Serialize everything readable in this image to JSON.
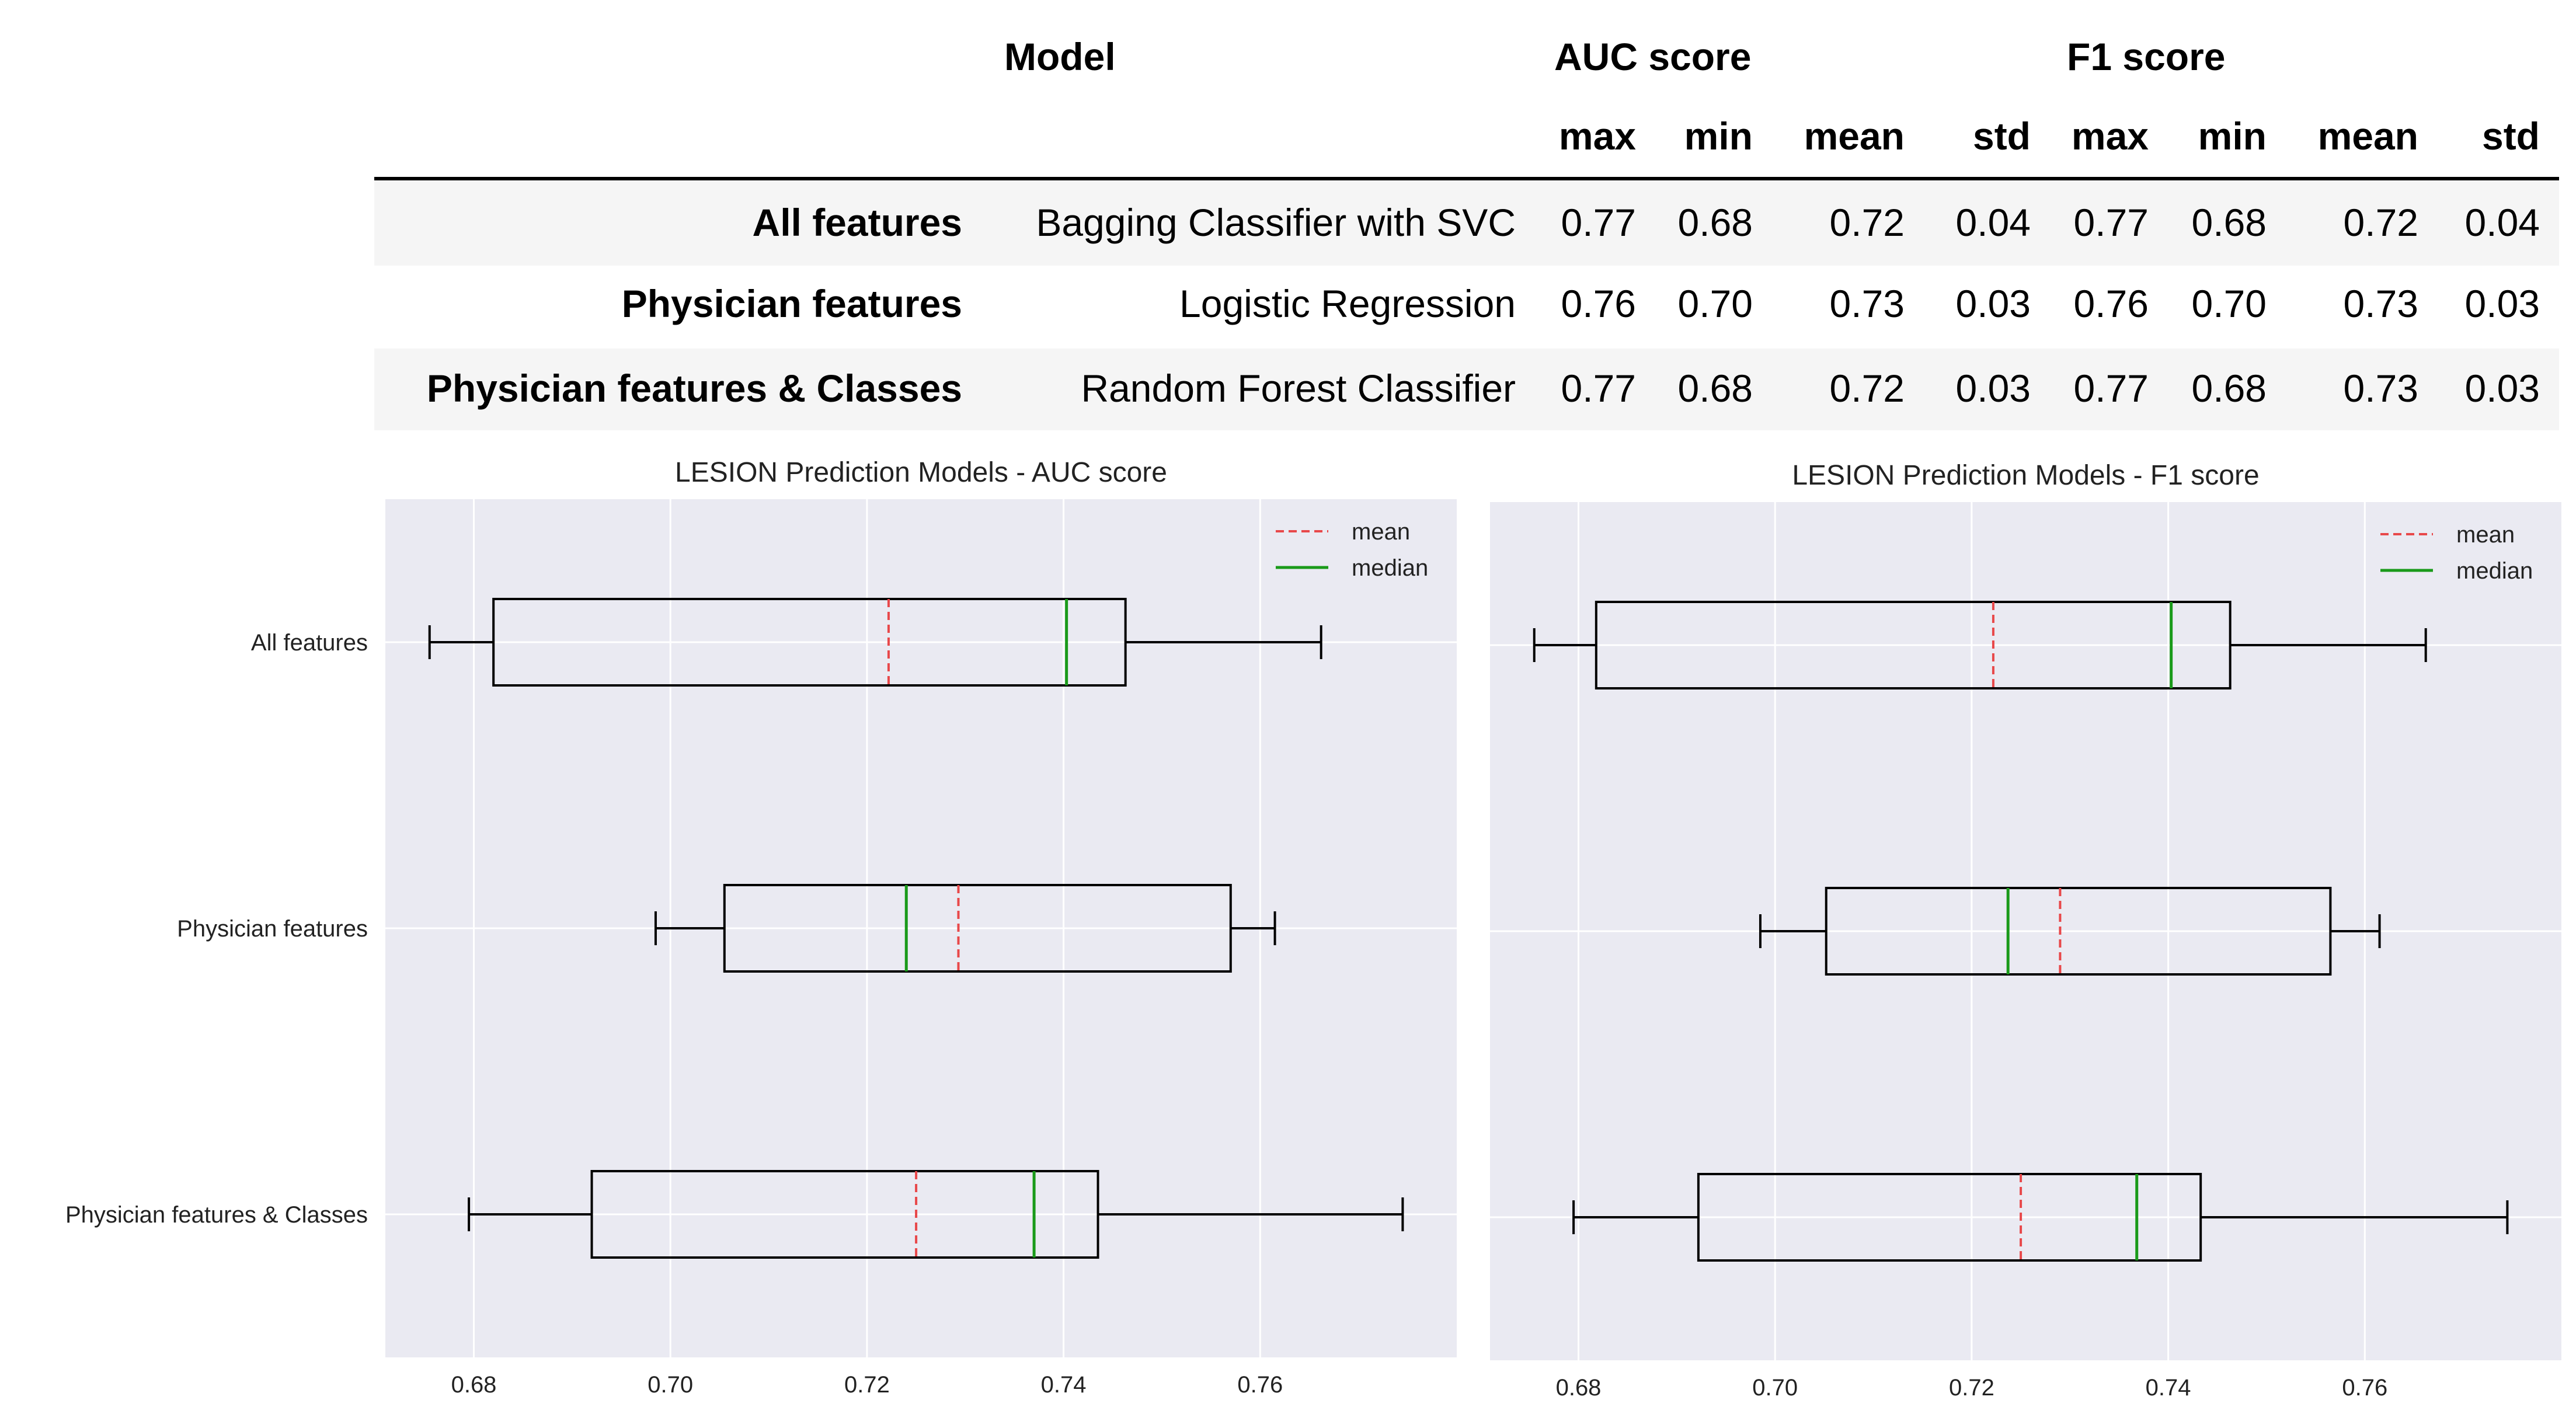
{
  "table": {
    "header": {
      "model": "Model",
      "auc_group": "AUC score",
      "f1_group": "F1 score",
      "sub": [
        "max",
        "min",
        "mean",
        "std",
        "max",
        "min",
        "mean",
        "std"
      ]
    },
    "rows": [
      {
        "feature_set": "All features",
        "model": "Bagging Classifier with SVC",
        "values": [
          "0.77",
          "0.68",
          "0.72",
          "0.04",
          "0.77",
          "0.68",
          "0.72",
          "0.04"
        ]
      },
      {
        "feature_set": "Physician features",
        "model": "Logistic Regression",
        "values": [
          "0.76",
          "0.70",
          "0.73",
          "0.03",
          "0.76",
          "0.70",
          "0.73",
          "0.03"
        ]
      },
      {
        "feature_set": "Physician features & Classes",
        "model": "Random Forest Classifier",
        "values": [
          "0.77",
          "0.68",
          "0.72",
          "0.03",
          "0.77",
          "0.68",
          "0.73",
          "0.03"
        ]
      }
    ]
  },
  "colors": {
    "plot_bg": "#eaeaf2",
    "grid": "#ffffff",
    "band": "#f5f5f5",
    "mean": "#e8484a",
    "median": "#1a9a1a",
    "box": "#000000"
  },
  "chart_data": [
    {
      "type": "boxplot",
      "title": "LESION Prediction Models - AUC score",
      "xlabel": "",
      "ylabel": "",
      "xlim": [
        0.671,
        0.78
      ],
      "xticks": [
        "0.68",
        "0.70",
        "0.72",
        "0.74",
        "0.76"
      ],
      "legend": {
        "position": "top-right",
        "entries": [
          "mean",
          "median"
        ]
      },
      "grid": true,
      "categories": [
        "All features",
        "Physician features",
        "Physician features & Classes"
      ],
      "series": [
        {
          "name": "All features",
          "whisker_low": 0.6755,
          "q1": 0.682,
          "median": 0.7403,
          "q3": 0.7463,
          "whisker_high": 0.7662,
          "mean": 0.7222
        },
        {
          "name": "Physician features",
          "whisker_low": 0.6985,
          "q1": 0.7055,
          "median": 0.724,
          "q3": 0.757,
          "whisker_high": 0.7615,
          "mean": 0.7293
        },
        {
          "name": "Physician features & Classes",
          "whisker_low": 0.6795,
          "q1": 0.692,
          "median": 0.737,
          "q3": 0.7435,
          "whisker_high": 0.7745,
          "mean": 0.725
        }
      ]
    },
    {
      "type": "boxplot",
      "title": "LESION Prediction Models - F1 score",
      "xlabel": "",
      "ylabel": "",
      "xlim": [
        0.671,
        0.78
      ],
      "xticks": [
        "0.68",
        "0.70",
        "0.72",
        "0.74",
        "0.76"
      ],
      "legend": {
        "position": "top-right",
        "entries": [
          "mean",
          "median"
        ]
      },
      "grid": true,
      "categories": [
        "All features",
        "Physician features",
        "Physician features & Classes"
      ],
      "series": [
        {
          "name": "All features",
          "whisker_low": 0.6755,
          "q1": 0.6818,
          "median": 0.7403,
          "q3": 0.7463,
          "whisker_high": 0.7662,
          "mean": 0.7222
        },
        {
          "name": "Physician features",
          "whisker_low": 0.6985,
          "q1": 0.7052,
          "median": 0.7237,
          "q3": 0.7565,
          "whisker_high": 0.7615,
          "mean": 0.729
        },
        {
          "name": "Physician features & Classes",
          "whisker_low": 0.6795,
          "q1": 0.6922,
          "median": 0.7368,
          "q3": 0.7433,
          "whisker_high": 0.7745,
          "mean": 0.725
        }
      ]
    }
  ]
}
